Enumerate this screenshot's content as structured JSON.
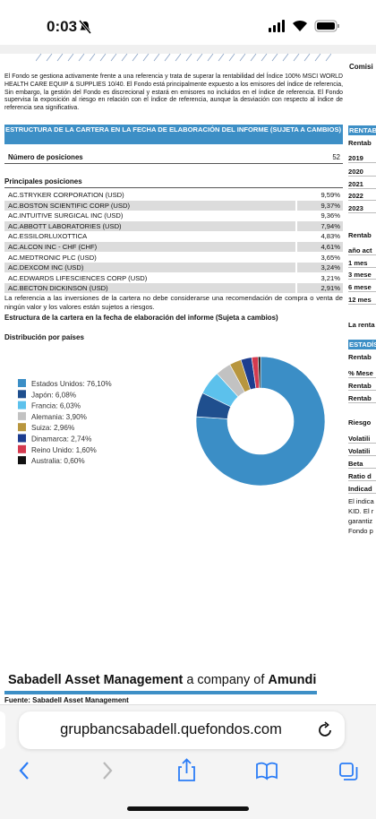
{
  "status_bar": {
    "time": "0:03"
  },
  "document": {
    "top_right": "Comisi",
    "paragraph": "El Fondo se gestiona activamente frente a una referencia y trata de superar la rentabilidad del Índice 100% MSCI WORLD HEALTH CARE EQUIP & SUPPLIES 10/40. El Fondo está principalmente expuesto a los emisores del índice de referencia, Sin embargo, la gestión del Fondo es discrecional y estará en emisores no incluidos en el índice de referencia. El Fondo supervisa la exposición al riesgo en relación con el índice de referencia, aunque la desviación con respecto al índice de referencia sea significativa.",
    "section_title": "ESTRUCTURA DE LA CARTERA EN LA FECHA DE ELABORACIÓN DEL INFORME (SUJETA A CAMBIOS)",
    "positions_count_label": "Número de posiciones",
    "positions_count": "52",
    "main_positions_title": "Principales posiciones",
    "positions": [
      [
        "AC.STRYKER CORPORATION (USD)",
        "9,59%"
      ],
      [
        "AC.BOSTON SCIENTIFIC CORP (USD)",
        "9,37%"
      ],
      [
        "AC.INTUITIVE SURGICAL INC (USD)",
        "9,36%"
      ],
      [
        "AC.ABBOTT LABORATORIES (USD)",
        "7,94%"
      ],
      [
        "AC.ESSILORLUXOTTICA",
        "4,83%"
      ],
      [
        "AC.ALCON INC - CHF (CHF)",
        "4,61%"
      ],
      [
        "AC.MEDTRONIC PLC (USD)",
        "3,65%"
      ],
      [
        "AC.DEXCOM INC (USD)",
        "3,24%"
      ],
      [
        "AC.EDWARDS LIFESCIENCES CORP (USD)",
        "3,21%"
      ],
      [
        "AC.BECTON DICKINSON (USD)",
        "2,91%"
      ]
    ],
    "note": "La referencia a las inversiones de la cartera no debe considerarse una recomendación de compra o venta de ningún valor y los valores están sujetos a riesgos.",
    "structure_title": "Estructura de la cartera en la fecha de elaboración del informe (Sujeta a cambios)",
    "distribution_title": "Distribución por países",
    "right_column": [
      "RENTAB",
      "Rentab",
      "2019",
      "2020",
      "2021",
      "2022",
      "2023",
      "Rentab",
      "año act",
      "1 mes",
      "3 mese",
      "6 mese",
      "12 mes",
      "La renta",
      "ESTADÍS",
      "Rentab",
      "% Mese",
      "Rentab",
      "Rentab",
      "Riesgo",
      "Volatili",
      "Volatili",
      "Beta",
      "Ratio d",
      "Indicad",
      "El indica",
      "KID. El r",
      "garantiz",
      "Fondo p"
    ],
    "footer_brand": "Sabadell Asset Management",
    "footer_mid": "a company of",
    "footer_parent": "Amundi",
    "source": "Fuente: Sabadell Asset Management"
  },
  "countries": {
    "type": "pie",
    "labels": [
      "Estados Unidos: 76,10%",
      "Japón: 6,08%",
      "Francia: 6,03%",
      "Alemania: 3,90%",
      "Suiza: 2,96%",
      "Dinamarca: 2,74%",
      "Reino Unido: 1,60%",
      "Australia: 0,60%"
    ],
    "values": [
      76.1,
      6.08,
      6.03,
      3.9,
      2.96,
      2.74,
      1.6,
      0.6
    ],
    "colors": [
      "#3b8ec6",
      "#1f4f8e",
      "#5cc1ec",
      "#c2c2c2",
      "#b8963e",
      "#1d3d8f",
      "#d43a4f",
      "#111111"
    ]
  },
  "browser": {
    "url": "grupbancsabadell.quefondos.com"
  }
}
